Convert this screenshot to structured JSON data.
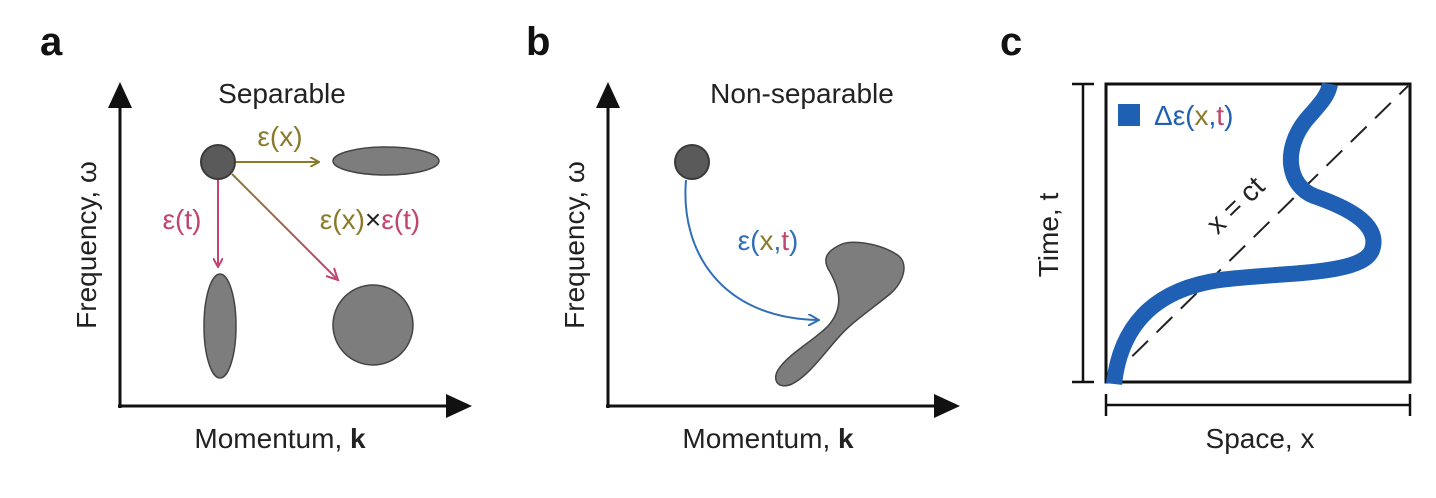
{
  "colors": {
    "axis": "#111111",
    "blob_fill": "#7d7d7d",
    "blob_stroke": "#444444",
    "source_fill": "#5a5a5a",
    "olive": "#8a7a2c",
    "pink": "#c0466e",
    "blue": "#2f6fb7",
    "curve": "#1f5fb4",
    "text": "#222222"
  },
  "panel_a": {
    "letter": "a",
    "title": "Separable",
    "y_label": "Frequency, ω",
    "x_label_text": "Momentum, ",
    "x_label_bold": "k",
    "arrow_x_label": "ε(x)",
    "arrow_t_label": "ε(t)",
    "arrow_xt_label_x": "ε(x)",
    "arrow_xt_label_times": "×",
    "arrow_xt_label_t": "ε(t)"
  },
  "panel_b": {
    "letter": "b",
    "title": "Non-separable",
    "y_label": "Frequency, ω",
    "x_label_text": "Momentum, ",
    "x_label_bold": "k",
    "arrow_label_eps": "ε(",
    "arrow_label_x": "x",
    "arrow_label_comma": ",",
    "arrow_label_t": "t",
    "arrow_label_close": ")"
  },
  "panel_c": {
    "letter": "c",
    "y_label": "Time, t",
    "x_label": "Space, x",
    "line_label": "x = ct",
    "legend_delta": "Δε(",
    "legend_x": "x",
    "legend_comma": ",",
    "legend_t": "t",
    "legend_close": ")"
  }
}
